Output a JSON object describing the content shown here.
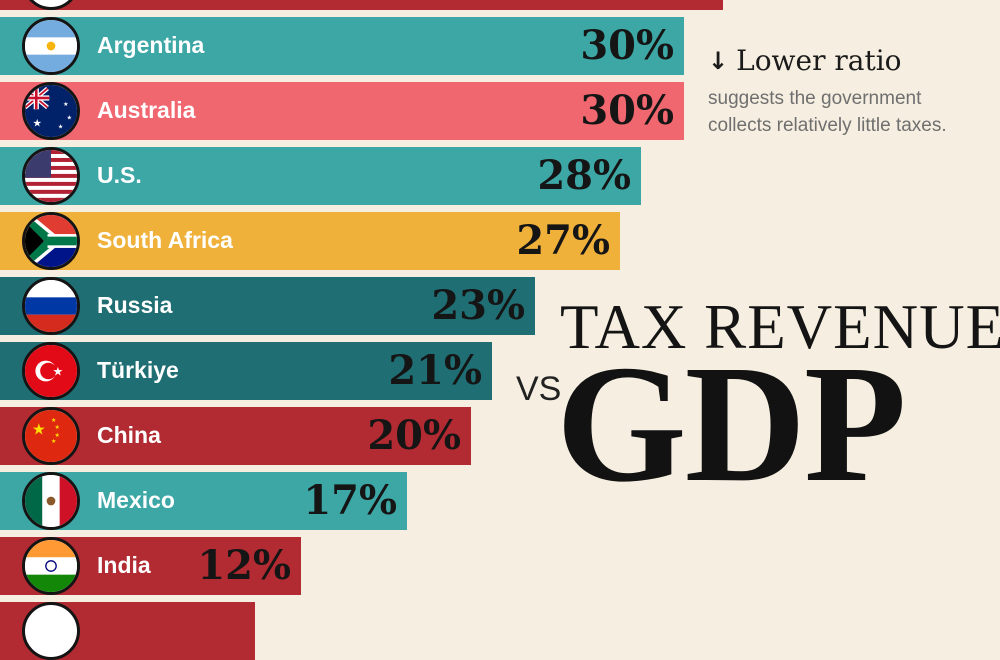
{
  "chart_data": {
    "type": "bar",
    "orientation": "horizontal",
    "categories": [
      "Argentina",
      "Australia",
      "U.S.",
      "South Africa",
      "Russia",
      "Türkiye",
      "China",
      "Mexico",
      "India"
    ],
    "values": [
      30,
      30,
      28,
      27,
      23,
      21,
      20,
      17,
      12
    ],
    "value_labels": [
      "30%",
      "30%",
      "28%",
      "27%",
      "23%",
      "21%",
      "20%",
      "17%",
      "12%"
    ],
    "bar_colors": [
      "#3da7a6",
      "#f0676f",
      "#3da7a6",
      "#efb13a",
      "#1f6e73",
      "#1f6e73",
      "#b22a32",
      "#3da7a6",
      "#b22a32"
    ],
    "flag_icons": [
      "argentina-flag-icon",
      "australia-flag-icon",
      "us-flag-icon",
      "south-africa-flag-icon",
      "russia-flag-icon",
      "turkiye-flag-icon",
      "china-flag-icon",
      "mexico-flag-icon",
      "india-flag-icon"
    ],
    "partial_bars": {
      "top": {
        "color": "#b22a32"
      },
      "bottom": {
        "color": "#b22a32"
      }
    }
  },
  "note": {
    "arrow": "↓",
    "title": "Lower ratio",
    "line1": "suggests the government",
    "line2": "collects relatively little taxes."
  },
  "title": {
    "top": "TAX REVENUE",
    "vs": "VS",
    "main": "GDP"
  }
}
